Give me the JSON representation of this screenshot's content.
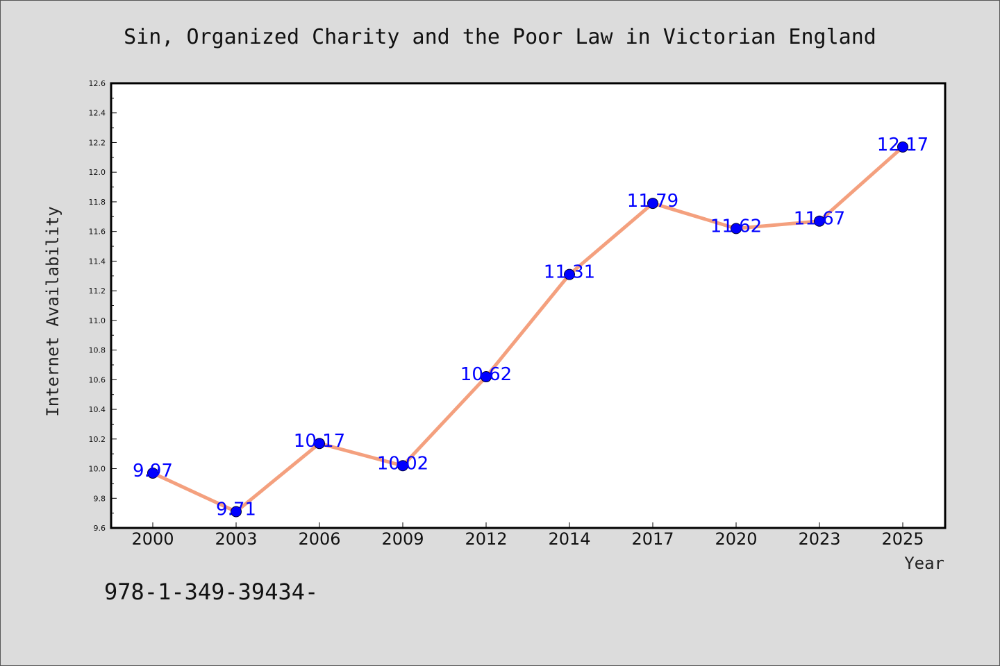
{
  "chart_data": {
    "type": "line",
    "title": "Sin, Organized Charity and the Poor Law in Victorian England",
    "xlabel": "Year",
    "ylabel": "Internet Availability",
    "categories": [
      "2000",
      "2003",
      "2006",
      "2009",
      "2012",
      "2014",
      "2017",
      "2020",
      "2023",
      "2025"
    ],
    "values": [
      9.97,
      9.71,
      10.17,
      10.02,
      10.62,
      11.31,
      11.79,
      11.62,
      11.67,
      12.17
    ],
    "data_labels": [
      "9.97",
      "9.71",
      "10.17",
      "10.02",
      "10.62",
      "11.31",
      "11.79",
      "11.62",
      "11.67",
      "12.17"
    ],
    "ylim": [
      9.6,
      12.6
    ],
    "yticks": [
      "9.6",
      "9.8",
      "10.0",
      "10.2",
      "10.4",
      "10.6",
      "10.8",
      "11.0",
      "11.2",
      "11.4",
      "11.6",
      "11.8",
      "12.0",
      "12.2",
      "12.4",
      "12.6"
    ],
    "grid": false,
    "line_color": "#f4a07e",
    "marker_color": "#0000ff",
    "label_color": "#0000ff",
    "background_color": "#dcdcdc"
  },
  "footer": {
    "isbn": "978-1-349-39434-"
  }
}
